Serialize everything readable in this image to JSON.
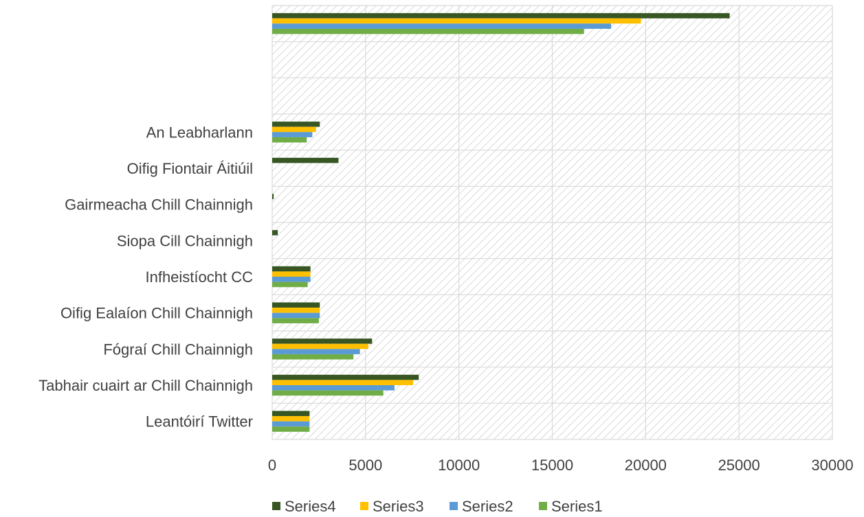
{
  "chart_data": {
    "type": "bar",
    "orientation": "horizontal",
    "categories": [
      "Leantóirí Twitter",
      "Tabhair cuairt ar Chill Chainnigh",
      "Fógraí Chill Chainnigh",
      "Oifig Ealaíon Chill Chainnigh",
      "Infheistíocht CC",
      "Siopa Cill Chainnigh",
      "Gairmeacha Chill Chainnigh",
      "Oifig Fiontair Áitiúil",
      "An Leabharlann",
      "",
      "",
      ""
    ],
    "series": [
      {
        "name": "Series1",
        "color": "#70ad47",
        "values": [
          2000,
          5950,
          4350,
          2500,
          1900,
          0,
          0,
          0,
          1850,
          0,
          0,
          16700
        ]
      },
      {
        "name": "Series2",
        "color": "#5b9bd5",
        "values": [
          2000,
          6550,
          4700,
          2550,
          2050,
          0,
          0,
          0,
          2150,
          0,
          0,
          18150
        ]
      },
      {
        "name": "Series3",
        "color": "#ffc000",
        "values": [
          2000,
          7550,
          5150,
          2550,
          2050,
          0,
          0,
          0,
          2350,
          0,
          0,
          19750
        ]
      },
      {
        "name": "Series4",
        "color": "#375623",
        "values": [
          2000,
          7850,
          5350,
          2550,
          2050,
          300,
          80,
          3550,
          2550,
          0,
          0,
          24500
        ]
      }
    ],
    "xlim": [
      0,
      30000
    ],
    "x_ticks": [
      "0",
      "5000",
      "10000",
      "15000",
      "20000",
      "25000",
      "30000"
    ],
    "x_tick_values": [
      0,
      5000,
      10000,
      15000,
      20000,
      25000,
      30000
    ],
    "grid": true,
    "legend_position": "bottom",
    "plot_background": "hatched"
  }
}
